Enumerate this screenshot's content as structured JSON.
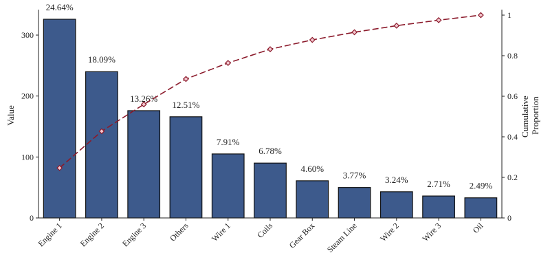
{
  "chart_data": {
    "type": "bar",
    "title": "",
    "categories": [
      "Engine 1",
      "Engine 2",
      "Engine 3",
      "Others",
      "Wire 1",
      "Coils",
      "Gear Box",
      "Steam Line",
      "Wire 2",
      "Wire 3",
      "Oil"
    ],
    "values": [
      326,
      240,
      176,
      166,
      105,
      90,
      61,
      50,
      43,
      36,
      33
    ],
    "percent_labels": [
      "24.64%",
      "18.09%",
      "13.26%",
      "12.51%",
      "7.91%",
      "6.78%",
      "4.60%",
      "3.77%",
      "3.24%",
      "2.71%",
      "2.49%"
    ],
    "cumulative": [
      0.2464,
      0.4273,
      0.5599,
      0.685,
      0.7641,
      0.8319,
      0.8779,
      0.9156,
      0.948,
      0.9751,
      1.0
    ],
    "ylabel": "Value",
    "y2label_lines": [
      "Cumulative",
      "Proportion"
    ],
    "ylim": [
      0,
      335
    ],
    "y2lim": [
      0,
      1
    ],
    "yticks": [
      0,
      100,
      200,
      300
    ],
    "y2ticks": [
      0,
      0.2,
      0.4,
      0.6,
      0.8,
      1
    ],
    "y2tick_labels": [
      "0",
      "0.2",
      "0.4",
      "0.6",
      "0.8",
      "1"
    ],
    "grid": false,
    "legend": "none",
    "colors": {
      "bar_fill": "#3d5a8c",
      "bar_stroke": "#111111",
      "line": "#8b1a2b",
      "marker_fill": "#f3c7cf"
    }
  }
}
